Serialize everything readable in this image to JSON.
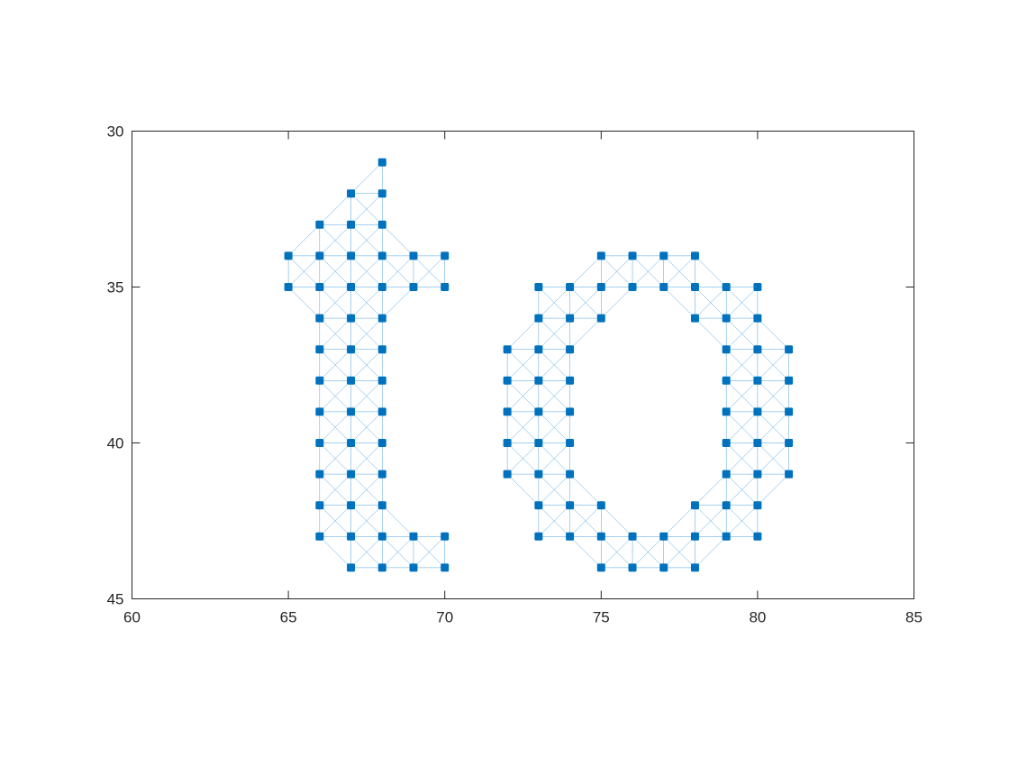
{
  "chart_data": {
    "type": "scatter",
    "style": "graph",
    "title": "",
    "xlabel": "",
    "ylabel": "",
    "xlim": [
      60,
      85
    ],
    "ylim": [
      30,
      45
    ],
    "y_direction": "reversed",
    "grid": false,
    "legend": "none",
    "x_ticks": [
      60,
      65,
      70,
      75,
      80,
      85
    ],
    "y_ticks": [
      30,
      35,
      40,
      45
    ],
    "colors": {
      "node": "#0072BD",
      "edge": "#4DA3E0",
      "axis": "#262626"
    },
    "edge_rule": "king-move neighbors (horizontal, vertical, diagonal)",
    "series": [
      {
        "name": "t",
        "points": [
          [
            68,
            31
          ],
          [
            67,
            32
          ],
          [
            68,
            32
          ],
          [
            66,
            33
          ],
          [
            67,
            33
          ],
          [
            68,
            33
          ],
          [
            65,
            34
          ],
          [
            66,
            34
          ],
          [
            67,
            34
          ],
          [
            68,
            34
          ],
          [
            69,
            34
          ],
          [
            70,
            34
          ],
          [
            65,
            35
          ],
          [
            66,
            35
          ],
          [
            67,
            35
          ],
          [
            68,
            35
          ],
          [
            69,
            35
          ],
          [
            70,
            35
          ],
          [
            66,
            36
          ],
          [
            67,
            36
          ],
          [
            68,
            36
          ],
          [
            66,
            37
          ],
          [
            67,
            37
          ],
          [
            68,
            37
          ],
          [
            66,
            38
          ],
          [
            67,
            38
          ],
          [
            68,
            38
          ],
          [
            66,
            39
          ],
          [
            67,
            39
          ],
          [
            68,
            39
          ],
          [
            66,
            40
          ],
          [
            67,
            40
          ],
          [
            68,
            40
          ],
          [
            66,
            41
          ],
          [
            67,
            41
          ],
          [
            68,
            41
          ],
          [
            66,
            42
          ],
          [
            67,
            42
          ],
          [
            68,
            42
          ],
          [
            66,
            43
          ],
          [
            67,
            43
          ],
          [
            68,
            43
          ],
          [
            69,
            43
          ],
          [
            70,
            43
          ],
          [
            67,
            44
          ],
          [
            68,
            44
          ],
          [
            69,
            44
          ],
          [
            70,
            44
          ]
        ]
      },
      {
        "name": "o",
        "points": [
          [
            75,
            34
          ],
          [
            76,
            34
          ],
          [
            77,
            34
          ],
          [
            78,
            34
          ],
          [
            73,
            35
          ],
          [
            74,
            35
          ],
          [
            75,
            35
          ],
          [
            76,
            35
          ],
          [
            77,
            35
          ],
          [
            78,
            35
          ],
          [
            79,
            35
          ],
          [
            80,
            35
          ],
          [
            73,
            36
          ],
          [
            74,
            36
          ],
          [
            75,
            36
          ],
          [
            78,
            36
          ],
          [
            79,
            36
          ],
          [
            80,
            36
          ],
          [
            72,
            37
          ],
          [
            73,
            37
          ],
          [
            74,
            37
          ],
          [
            79,
            37
          ],
          [
            80,
            37
          ],
          [
            81,
            37
          ],
          [
            72,
            38
          ],
          [
            73,
            38
          ],
          [
            74,
            38
          ],
          [
            79,
            38
          ],
          [
            80,
            38
          ],
          [
            81,
            38
          ],
          [
            72,
            39
          ],
          [
            73,
            39
          ],
          [
            74,
            39
          ],
          [
            79,
            39
          ],
          [
            80,
            39
          ],
          [
            81,
            39
          ],
          [
            72,
            40
          ],
          [
            73,
            40
          ],
          [
            74,
            40
          ],
          [
            79,
            40
          ],
          [
            80,
            40
          ],
          [
            81,
            40
          ],
          [
            72,
            41
          ],
          [
            73,
            41
          ],
          [
            74,
            41
          ],
          [
            79,
            41
          ],
          [
            80,
            41
          ],
          [
            81,
            41
          ],
          [
            73,
            42
          ],
          [
            74,
            42
          ],
          [
            75,
            42
          ],
          [
            78,
            42
          ],
          [
            79,
            42
          ],
          [
            80,
            42
          ],
          [
            73,
            43
          ],
          [
            74,
            43
          ],
          [
            75,
            43
          ],
          [
            76,
            43
          ],
          [
            77,
            43
          ],
          [
            78,
            43
          ],
          [
            79,
            43
          ],
          [
            80,
            43
          ],
          [
            75,
            44
          ],
          [
            76,
            44
          ],
          [
            77,
            44
          ],
          [
            78,
            44
          ]
        ]
      }
    ]
  }
}
